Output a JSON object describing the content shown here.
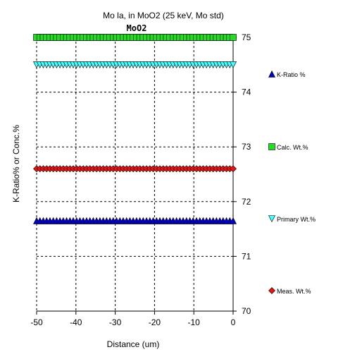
{
  "chart_data": {
    "type": "scatter",
    "title": "Mo la, in MoO2 (25 keV, Mo std)",
    "subtitle": "MoO2",
    "xlabel": "Distance (um)",
    "ylabel": "K-Ratio% or Conc.%",
    "xlim": [
      -50,
      0
    ],
    "ylim": [
      70,
      75
    ],
    "x_ticks": [
      -50,
      -40,
      -30,
      -20,
      -10,
      0
    ],
    "y_ticks": [
      70,
      71,
      72,
      73,
      74,
      75
    ],
    "y_axis_side": "right",
    "grid": true,
    "legend_placement": "right",
    "n_points": 60,
    "series": [
      {
        "name": "K-Ratio %",
        "marker": "triangle-up",
        "color": "#0000cc",
        "value": 71.65
      },
      {
        "name": "Calc. Wt.%",
        "marker": "square",
        "color": "#22dd22",
        "value": 75.0
      },
      {
        "name": "Primary Wt.%",
        "marker": "triangle-down",
        "color": "#44ffff",
        "value": 74.5
      },
      {
        "name": "Meas. Wt.%",
        "marker": "diamond",
        "color": "#ee1111",
        "value": 72.6
      }
    ]
  }
}
